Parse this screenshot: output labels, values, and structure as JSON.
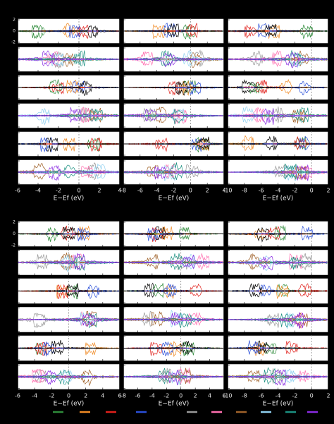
{
  "blocks": [
    {
      "yticks": [
        -2,
        0,
        2
      ],
      "columns": [
        {
          "xlim": [
            -6,
            4
          ],
          "xticks": [
            -6,
            -4,
            -2,
            0,
            2,
            4
          ],
          "xlabel": "E−Ef (eV)"
        },
        {
          "xlim": [
            -8,
            4
          ],
          "xticks": [
            -8,
            -6,
            -4,
            -2,
            0,
            2,
            4
          ],
          "xlabel": "E−Ef (eV)"
        },
        {
          "xlim": [
            -10,
            2
          ],
          "xticks": [
            -10,
            -8,
            -6,
            -4,
            -2,
            0,
            2
          ],
          "xlabel": "E−Ef (eV)"
        }
      ]
    },
    {
      "yticks": [
        -2,
        0,
        2
      ],
      "columns": [
        {
          "xlim": [
            -6,
            6
          ],
          "xticks": [
            -6,
            -4,
            -2,
            0,
            2,
            4,
            6
          ],
          "xlabel": "E−Ef (eV)"
        },
        {
          "xlim": [
            -8,
            6
          ],
          "xticks": [
            -8,
            -6,
            -4,
            -2,
            0,
            2,
            4,
            6
          ],
          "xlabel": "E−Ef (eV)"
        },
        {
          "xlim": [
            -10,
            2
          ],
          "xticks": [
            -10,
            -8,
            -6,
            -4,
            -2,
            0,
            2
          ],
          "xlabel": "E−Ef (eV)"
        }
      ]
    }
  ],
  "legend_colors": [
    "#2e8b3a",
    "#f08a24",
    "#e0201b",
    "#2a4fd8",
    "#999999",
    "#ff6fb0",
    "#a0622a",
    "#8fd0ef",
    "#1b9080",
    "#8a2be2"
  ]
}
